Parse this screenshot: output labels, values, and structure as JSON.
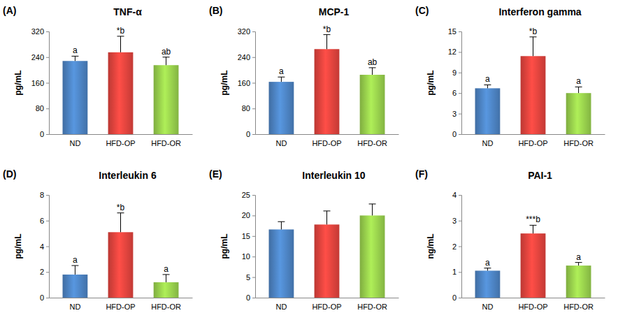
{
  "chart_data": [
    {
      "type": "bar",
      "panel": "(A)",
      "title": "TNF-α",
      "y_label": "pg/mL",
      "categories": [
        "ND",
        "HFD-OP",
        "HFD-OR"
      ],
      "values": [
        228,
        255,
        215
      ],
      "errors": [
        15,
        50,
        25
      ],
      "annotations": [
        "a",
        "*b",
        "ab"
      ],
      "colors": [
        "#4a7ebb",
        "#d9413b",
        "#92c84a"
      ],
      "ylim": [
        0,
        320
      ],
      "yticks": [
        0,
        80,
        160,
        240,
        320
      ]
    },
    {
      "type": "bar",
      "panel": "(B)",
      "title": "MCP-1",
      "y_label": "pg/mL",
      "categories": [
        "ND",
        "HFD-OP",
        "HFD-OR"
      ],
      "values": [
        163,
        265,
        185
      ],
      "errors": [
        15,
        45,
        22
      ],
      "annotations": [
        "a",
        "*b",
        "ab"
      ],
      "colors": [
        "#4a7ebb",
        "#d9413b",
        "#92c84a"
      ],
      "ylim": [
        0,
        320
      ],
      "yticks": [
        0,
        80,
        160,
        240,
        320
      ]
    },
    {
      "type": "bar",
      "panel": "(C)",
      "title": "Interferon gamma",
      "y_label": "pg/mL",
      "categories": [
        "ND",
        "HFD-OP",
        "HFD-OR"
      ],
      "values": [
        6.7,
        11.4,
        6.0
      ],
      "errors": [
        0.5,
        2.8,
        0.9
      ],
      "annotations": [
        "a",
        "*b",
        "a"
      ],
      "colors": [
        "#4a7ebb",
        "#d9413b",
        "#92c84a"
      ],
      "ylim": [
        0,
        15
      ],
      "yticks": [
        0,
        3,
        6,
        9,
        12,
        15
      ]
    },
    {
      "type": "bar",
      "panel": "(D)",
      "title": "Interleukin 6",
      "y_label": "pg/mL",
      "categories": [
        "ND",
        "HFD-OP",
        "HFD-OR"
      ],
      "values": [
        1.8,
        5.1,
        1.2
      ],
      "errors": [
        0.7,
        1.5,
        0.6
      ],
      "annotations": [
        "a",
        "*b",
        "a"
      ],
      "colors": [
        "#4a7ebb",
        "#d9413b",
        "#92c84a"
      ],
      "ylim": [
        0,
        8
      ],
      "yticks": [
        0,
        2,
        4,
        6,
        8
      ]
    },
    {
      "type": "bar",
      "panel": "(E)",
      "title": "Interleukin 10",
      "y_label": "pg/mL",
      "categories": [
        "ND",
        "HFD-OP",
        "HFD-OR"
      ],
      "values": [
        16.6,
        17.8,
        20.0
      ],
      "errors": [
        1.9,
        3.3,
        2.8
      ],
      "colors": [
        "#4a7ebb",
        "#d9413b",
        "#92c84a"
      ],
      "ylim": [
        0,
        25
      ],
      "yticks": [
        0,
        5,
        10,
        15,
        20,
        25
      ]
    },
    {
      "type": "bar",
      "panel": "(F)",
      "title": "PAI-1",
      "y_label": "ng/mL",
      "categories": [
        "ND",
        "HFD-OP",
        "HFD-OR"
      ],
      "values": [
        1.05,
        2.5,
        1.25
      ],
      "errors": [
        0.1,
        0.32,
        0.12
      ],
      "annotations": [
        "a",
        "***b",
        "a"
      ],
      "colors": [
        "#4a7ebb",
        "#d9413b",
        "#92c84a"
      ],
      "ylim": [
        0,
        4
      ],
      "yticks": [
        0,
        1,
        2,
        3,
        4
      ]
    }
  ]
}
